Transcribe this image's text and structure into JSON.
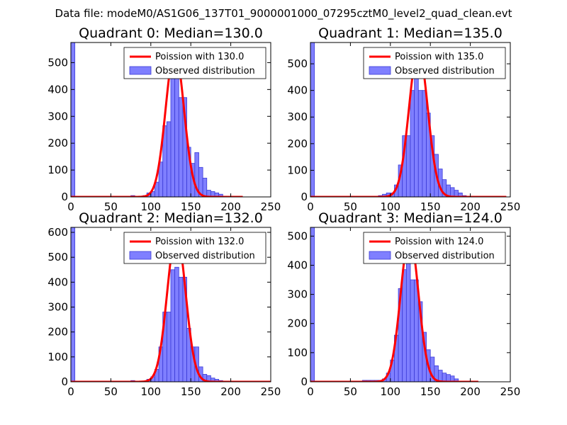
{
  "figure": {
    "suptitle": "Data file: modeM0/AS1G06_137T01_9000001000_07295cztM0_level2_quad_clean.evt"
  },
  "chart_data": [
    {
      "type": "bar",
      "title": "Quadrant 0: Median=130.0",
      "median": 130.0,
      "xlim": [
        0,
        250
      ],
      "ylim": [
        0,
        575
      ],
      "xticks": [
        "0",
        "50",
        "100",
        "150",
        "200",
        "250"
      ],
      "yticks": [
        {
          "value": 0,
          "label": "0"
        },
        {
          "value": 100,
          "label": "100"
        },
        {
          "value": 200,
          "label": "200"
        },
        {
          "value": 300,
          "label": "300"
        },
        {
          "value": 400,
          "label": "400"
        },
        {
          "value": 500,
          "label": "500"
        }
      ],
      "bin_width": 5,
      "bins": [
        {
          "x": 0,
          "h": 575
        },
        {
          "x": 75,
          "h": 5
        },
        {
          "x": 90,
          "h": 5
        },
        {
          "x": 95,
          "h": 15
        },
        {
          "x": 100,
          "h": 20
        },
        {
          "x": 105,
          "h": 55
        },
        {
          "x": 110,
          "h": 130
        },
        {
          "x": 115,
          "h": 265
        },
        {
          "x": 120,
          "h": 280
        },
        {
          "x": 125,
          "h": 450
        },
        {
          "x": 130,
          "h": 490
        },
        {
          "x": 135,
          "h": 370
        },
        {
          "x": 140,
          "h": 370
        },
        {
          "x": 145,
          "h": 185
        },
        {
          "x": 150,
          "h": 125
        },
        {
          "x": 155,
          "h": 165
        },
        {
          "x": 160,
          "h": 110
        },
        {
          "x": 165,
          "h": 70
        },
        {
          "x": 170,
          "h": 25
        },
        {
          "x": 175,
          "h": 20
        },
        {
          "x": 180,
          "h": 15
        },
        {
          "x": 185,
          "h": 10
        },
        {
          "x": 190,
          "h": 3
        }
      ],
      "poisson": {
        "label": "Poission with 130.0",
        "mean": 130.0,
        "peak": 545,
        "x_end": 215
      },
      "legend": {
        "poisson_label": "Poission with 130.0",
        "observed_label": "Observed distribution",
        "location": "upper-right"
      }
    },
    {
      "type": "bar",
      "title": "Quadrant 1: Median=135.0",
      "median": 135.0,
      "xlim": [
        0,
        250
      ],
      "ylim": [
        0,
        580
      ],
      "xticks": [
        "0",
        "50",
        "100",
        "150",
        "200",
        "250"
      ],
      "yticks": [
        {
          "value": 0,
          "label": "0"
        },
        {
          "value": 100,
          "label": "100"
        },
        {
          "value": 200,
          "label": "200"
        },
        {
          "value": 300,
          "label": "300"
        },
        {
          "value": 400,
          "label": "400"
        },
        {
          "value": 500,
          "label": "500"
        }
      ],
      "bin_width": 5,
      "bins": [
        {
          "x": 0,
          "h": 580
        },
        {
          "x": 85,
          "h": 5
        },
        {
          "x": 90,
          "h": 10
        },
        {
          "x": 95,
          "h": 15
        },
        {
          "x": 100,
          "h": 15
        },
        {
          "x": 105,
          "h": 45
        },
        {
          "x": 110,
          "h": 120
        },
        {
          "x": 115,
          "h": 230
        },
        {
          "x": 120,
          "h": 230
        },
        {
          "x": 125,
          "h": 400
        },
        {
          "x": 130,
          "h": 475
        },
        {
          "x": 135,
          "h": 400
        },
        {
          "x": 140,
          "h": 400
        },
        {
          "x": 145,
          "h": 315
        },
        {
          "x": 150,
          "h": 230
        },
        {
          "x": 155,
          "h": 160
        },
        {
          "x": 160,
          "h": 105
        },
        {
          "x": 165,
          "h": 65
        },
        {
          "x": 170,
          "h": 45
        },
        {
          "x": 175,
          "h": 35
        },
        {
          "x": 180,
          "h": 25
        },
        {
          "x": 185,
          "h": 15
        },
        {
          "x": 190,
          "h": 5
        }
      ],
      "poisson": {
        "label": "Poission with 135.0",
        "mean": 135.0,
        "peak": 555,
        "x_end": 245
      },
      "legend": {
        "poisson_label": "Poission with 135.0",
        "observed_label": "Observed distribution",
        "location": "upper-right"
      }
    },
    {
      "type": "bar",
      "title": "Quadrant 2: Median=132.0",
      "median": 132.0,
      "xlim": [
        0,
        250
      ],
      "ylim": [
        0,
        620
      ],
      "xticks": [
        "0",
        "50",
        "100",
        "150",
        "200",
        "250"
      ],
      "yticks": [
        {
          "value": 0,
          "label": "0"
        },
        {
          "value": 100,
          "label": "100"
        },
        {
          "value": 200,
          "label": "200"
        },
        {
          "value": 300,
          "label": "300"
        },
        {
          "value": 400,
          "label": "400"
        },
        {
          "value": 500,
          "label": "500"
        },
        {
          "value": 600,
          "label": "600"
        }
      ],
      "bin_width": 5,
      "bins": [
        {
          "x": 0,
          "h": 620
        },
        {
          "x": 75,
          "h": 5
        },
        {
          "x": 95,
          "h": 10
        },
        {
          "x": 100,
          "h": 20
        },
        {
          "x": 105,
          "h": 50
        },
        {
          "x": 110,
          "h": 140
        },
        {
          "x": 115,
          "h": 280
        },
        {
          "x": 120,
          "h": 280
        },
        {
          "x": 125,
          "h": 450
        },
        {
          "x": 130,
          "h": 460
        },
        {
          "x": 135,
          "h": 420
        },
        {
          "x": 140,
          "h": 420
        },
        {
          "x": 145,
          "h": 215
        },
        {
          "x": 150,
          "h": 140
        },
        {
          "x": 155,
          "h": 140
        },
        {
          "x": 160,
          "h": 60
        },
        {
          "x": 165,
          "h": 30
        },
        {
          "x": 170,
          "h": 25
        },
        {
          "x": 175,
          "h": 15
        },
        {
          "x": 180,
          "h": 10
        },
        {
          "x": 185,
          "h": 5
        }
      ],
      "poisson": {
        "label": "Poission with 132.0",
        "mean": 132.0,
        "peak": 595,
        "x_end": 250
      },
      "legend": {
        "poisson_label": "Poission with 132.0",
        "observed_label": "Observed distribution",
        "location": "upper-right"
      }
    },
    {
      "type": "bar",
      "title": "Quadrant 3: Median=124.0",
      "median": 124.0,
      "xlim": [
        0,
        250
      ],
      "ylim": [
        0,
        530
      ],
      "xticks": [
        "0",
        "50",
        "100",
        "150",
        "200",
        "250"
      ],
      "yticks": [
        {
          "value": 0,
          "label": "0"
        },
        {
          "value": 100,
          "label": "100"
        },
        {
          "value": 200,
          "label": "200"
        },
        {
          "value": 300,
          "label": "300"
        },
        {
          "value": 400,
          "label": "400"
        },
        {
          "value": 500,
          "label": "500"
        }
      ],
      "bin_width": 5,
      "bins": [
        {
          "x": 0,
          "h": 530
        },
        {
          "x": 65,
          "h": 5
        },
        {
          "x": 70,
          "h": 5
        },
        {
          "x": 75,
          "h": 5
        },
        {
          "x": 80,
          "h": 5
        },
        {
          "x": 85,
          "h": 5
        },
        {
          "x": 90,
          "h": 10
        },
        {
          "x": 95,
          "h": 30
        },
        {
          "x": 100,
          "h": 75
        },
        {
          "x": 105,
          "h": 160
        },
        {
          "x": 110,
          "h": 320
        },
        {
          "x": 115,
          "h": 385
        },
        {
          "x": 120,
          "h": 500
        },
        {
          "x": 125,
          "h": 350
        },
        {
          "x": 130,
          "h": 350
        },
        {
          "x": 135,
          "h": 275
        },
        {
          "x": 140,
          "h": 170
        },
        {
          "x": 145,
          "h": 110
        },
        {
          "x": 150,
          "h": 85
        },
        {
          "x": 155,
          "h": 55
        },
        {
          "x": 160,
          "h": 40
        },
        {
          "x": 165,
          "h": 30
        },
        {
          "x": 170,
          "h": 25
        },
        {
          "x": 175,
          "h": 20
        },
        {
          "x": 180,
          "h": 10
        }
      ],
      "poisson": {
        "label": "Poission with 124.0",
        "mean": 124.0,
        "peak": 500,
        "x_end": 210
      },
      "legend": {
        "poisson_label": "Poission with 124.0",
        "observed_label": "Observed distribution",
        "location": "upper-right"
      }
    }
  ],
  "colors": {
    "bar_fill": "#7f7fff",
    "bar_edge": "#3b3bd6",
    "poisson_line": "#ff0000",
    "axes": "#000000",
    "background": "#ffffff"
  }
}
